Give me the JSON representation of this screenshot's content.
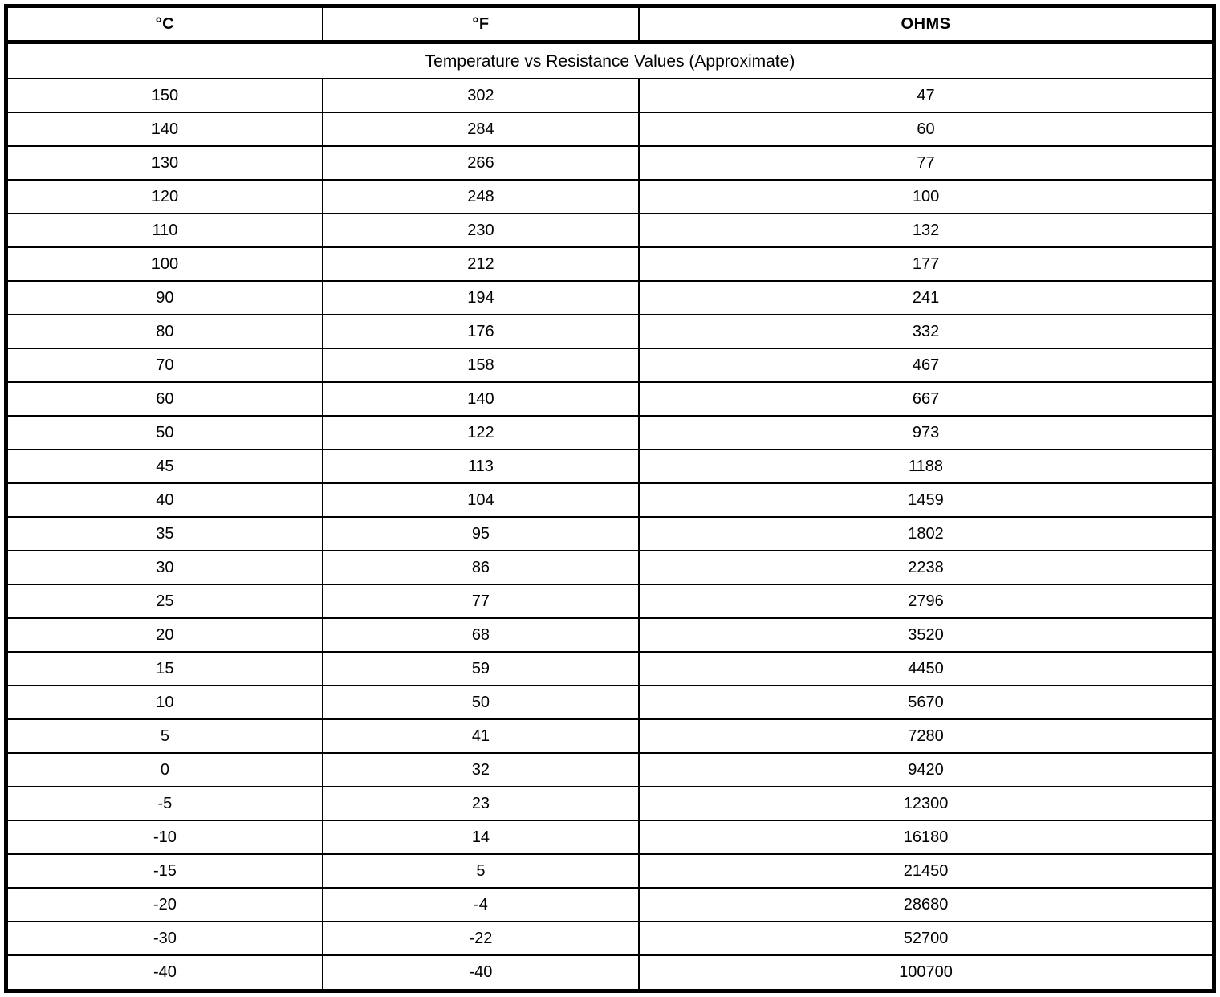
{
  "chart_data": {
    "type": "table",
    "title": "Temperature vs Resistance Values (Approximate)",
    "columns": [
      "°C",
      "°F",
      "OHMS"
    ],
    "rows": [
      [
        150,
        302,
        47
      ],
      [
        140,
        284,
        60
      ],
      [
        130,
        266,
        77
      ],
      [
        120,
        248,
        100
      ],
      [
        110,
        230,
        132
      ],
      [
        100,
        212,
        177
      ],
      [
        90,
        194,
        241
      ],
      [
        80,
        176,
        332
      ],
      [
        70,
        158,
        467
      ],
      [
        60,
        140,
        667
      ],
      [
        50,
        122,
        973
      ],
      [
        45,
        113,
        1188
      ],
      [
        40,
        104,
        1459
      ],
      [
        35,
        95,
        1802
      ],
      [
        30,
        86,
        2238
      ],
      [
        25,
        77,
        2796
      ],
      [
        20,
        68,
        3520
      ],
      [
        15,
        59,
        4450
      ],
      [
        10,
        50,
        5670
      ],
      [
        5,
        41,
        7280
      ],
      [
        0,
        32,
        9420
      ],
      [
        -5,
        23,
        12300
      ],
      [
        -10,
        14,
        16180
      ],
      [
        -15,
        5,
        21450
      ],
      [
        -20,
        -4,
        28680
      ],
      [
        -30,
        -22,
        52700
      ],
      [
        -40,
        -40,
        100700
      ]
    ],
    "layout": {
      "column_widths_percent": [
        26.2,
        26.2,
        47.6
      ],
      "border_color": "#000000",
      "background_color": "#ffffff"
    }
  }
}
